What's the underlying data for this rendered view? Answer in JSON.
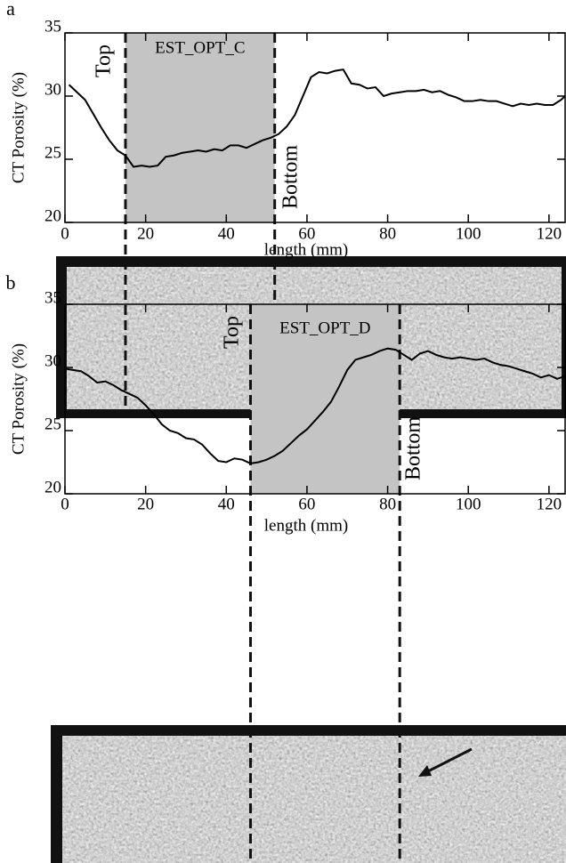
{
  "chart_data": [
    {
      "type": "line",
      "panel_label": "a",
      "xlabel": "length (mm)",
      "ylabel": "CT Porosity (%)",
      "xlim": [
        0,
        124
      ],
      "ylim": [
        20,
        35
      ],
      "xticks": [
        0,
        20,
        40,
        60,
        80,
        100,
        120
      ],
      "yticks": [
        20,
        25,
        30,
        35
      ],
      "region": [
        15,
        52
      ],
      "region_label": "EST_OPT_C",
      "top_label": "Top",
      "bottom_label": "Bottom",
      "color": "#000000",
      "x": [
        1,
        3,
        5,
        7,
        9,
        11,
        13,
        15,
        17,
        19,
        21,
        23,
        25,
        27,
        29,
        31,
        33,
        35,
        37,
        39,
        41,
        43,
        45,
        47,
        49,
        51,
        53,
        55,
        57,
        59,
        61,
        63,
        65,
        67,
        69,
        71,
        73,
        75,
        77,
        79,
        81,
        83,
        85,
        87,
        89,
        91,
        93,
        95,
        97,
        99,
        101,
        103,
        105,
        107,
        109,
        111,
        113,
        115,
        117,
        119,
        121,
        123,
        124
      ],
      "values": [
        30.9,
        30.3,
        29.7,
        28.6,
        27.5,
        26.5,
        25.7,
        25.3,
        24.4,
        24.5,
        24.4,
        24.5,
        25.2,
        25.3,
        25.5,
        25.6,
        25.7,
        25.6,
        25.8,
        25.7,
        26.1,
        26.1,
        25.9,
        26.2,
        26.5,
        26.7,
        27.0,
        27.6,
        28.5,
        30.0,
        31.5,
        31.9,
        31.8,
        32.0,
        32.1,
        31.0,
        30.9,
        30.6,
        30.7,
        30.0,
        30.2,
        30.3,
        30.4,
        30.4,
        30.5,
        30.3,
        30.4,
        30.1,
        29.9,
        29.6,
        29.6,
        29.7,
        29.6,
        29.6,
        29.4,
        29.2,
        29.4,
        29.3,
        29.4,
        29.3,
        29.3,
        29.7,
        30.0
      ]
    },
    {
      "type": "line",
      "panel_label": "b",
      "xlabel": "length (mm)",
      "ylabel": "CT Porosity (%)",
      "xlim": [
        0,
        124
      ],
      "ylim": [
        20,
        35
      ],
      "xticks": [
        0,
        20,
        40,
        60,
        80,
        100,
        120
      ],
      "yticks": [
        20,
        25,
        30,
        35
      ],
      "region": [
        46,
        83
      ],
      "region_label": "EST_OPT_D",
      "top_label": "Top",
      "bottom_label": "Bottom",
      "color": "#000000",
      "x": [
        0,
        2,
        4,
        6,
        8,
        10,
        12,
        14,
        16,
        18,
        20,
        22,
        24,
        26,
        28,
        30,
        32,
        34,
        36,
        38,
        40,
        42,
        44,
        46,
        48,
        50,
        52,
        54,
        56,
        58,
        60,
        62,
        64,
        66,
        68,
        70,
        72,
        74,
        76,
        78,
        80,
        82,
        84,
        86,
        88,
        90,
        92,
        94,
        96,
        98,
        100,
        102,
        104,
        106,
        108,
        110,
        112,
        114,
        116,
        118,
        120,
        122,
        124
      ],
      "values": [
        29.9,
        29.8,
        29.7,
        29.3,
        28.8,
        28.9,
        28.6,
        28.2,
        27.9,
        27.6,
        27.0,
        26.3,
        25.5,
        25.0,
        24.8,
        24.4,
        24.3,
        23.9,
        23.2,
        22.6,
        22.5,
        22.8,
        22.7,
        22.4,
        22.5,
        22.7,
        23.0,
        23.4,
        24.0,
        24.6,
        25.1,
        25.8,
        26.5,
        27.3,
        28.5,
        29.8,
        30.6,
        30.8,
        31.0,
        31.3,
        31.5,
        31.4,
        31.0,
        30.6,
        31.1,
        31.3,
        31.0,
        30.8,
        30.7,
        30.8,
        30.7,
        30.6,
        30.7,
        30.4,
        30.2,
        30.1,
        29.9,
        29.7,
        29.5,
        29.2,
        29.4,
        29.1,
        29.3
      ]
    }
  ]
}
